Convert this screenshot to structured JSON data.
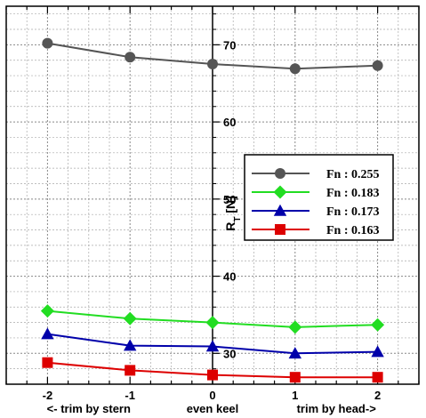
{
  "chart_data": {
    "type": "line",
    "x": [
      -2,
      -1,
      0,
      1,
      2
    ],
    "xlim": [
      -2.5,
      2.5
    ],
    "ylim": [
      26,
      75
    ],
    "x_ticks": [
      -2,
      -1,
      0,
      1,
      2
    ],
    "x_tick_labels": [
      "-2",
      "-1",
      "0",
      "1",
      "2"
    ],
    "y_ticks": [
      30,
      40,
      50,
      60,
      70
    ],
    "y_tick_labels": [
      "30",
      "40",
      "50",
      "60",
      "70"
    ],
    "x_category_labels": [
      {
        "x": -1.5,
        "text": "<- trim by stern"
      },
      {
        "x": 0,
        "text": "even keel"
      },
      {
        "x": 1.5,
        "text": "trim by head->"
      }
    ],
    "ylabel": {
      "main": "R",
      "sub": "T",
      "rest": " [N]"
    },
    "grid": true,
    "legend_position": "right-middle",
    "series": [
      {
        "name": "Fn : 0.255",
        "marker": "circle",
        "color": "#555555",
        "values": [
          70.2,
          68.4,
          67.5,
          66.9,
          67.3
        ]
      },
      {
        "name": "Fn : 0.183",
        "marker": "diamond",
        "color": "#22dd22",
        "values": [
          35.5,
          34.5,
          34.0,
          33.4,
          33.7
        ]
      },
      {
        "name": "Fn : 0.173",
        "marker": "triangle",
        "color": "#0000aa",
        "values": [
          32.5,
          31.0,
          30.9,
          30.0,
          30.2
        ]
      },
      {
        "name": "Fn : 0.163",
        "marker": "square",
        "color": "#dd0000",
        "values": [
          28.8,
          27.8,
          27.2,
          26.9,
          26.9
        ]
      }
    ]
  }
}
